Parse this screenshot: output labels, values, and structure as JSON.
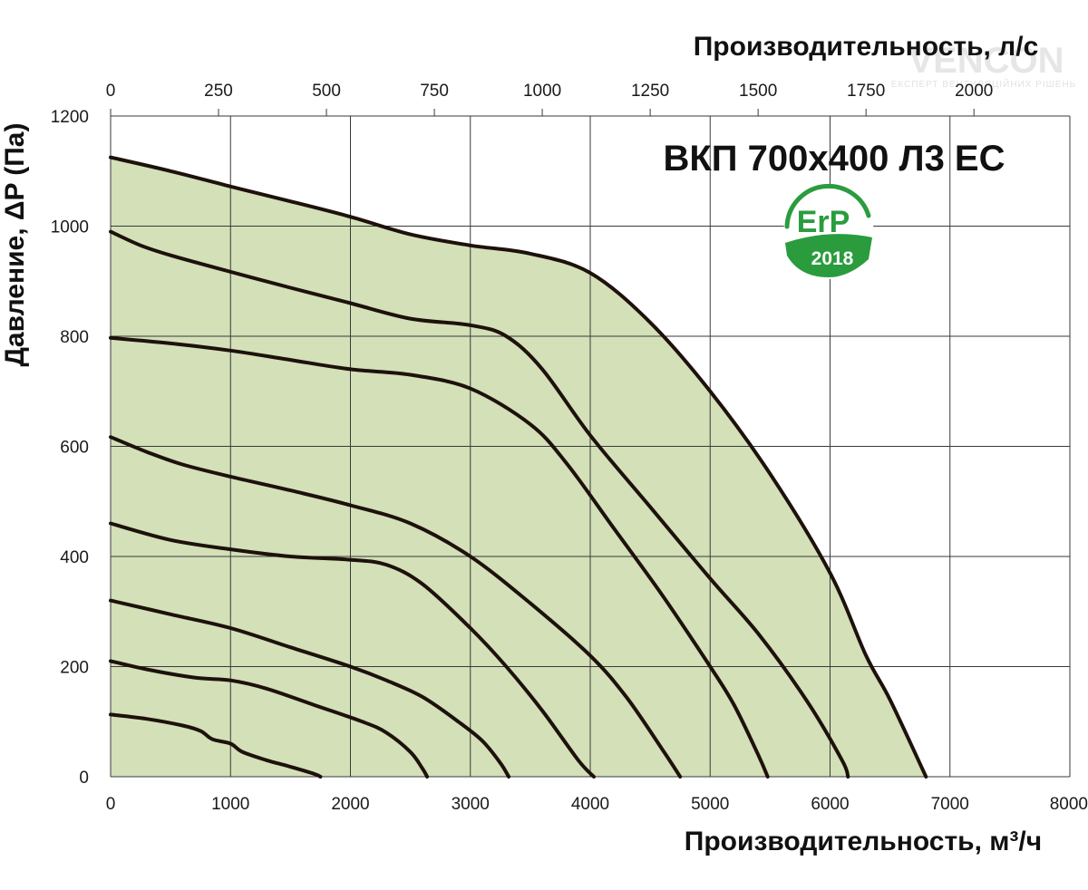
{
  "chart_data": {
    "type": "line",
    "title": "ВКП 700x400 Л3 ЕС",
    "xlabel": "Производительность, м³/ч",
    "x2label": "Производительность, л/с",
    "ylabel": "Давление, ΔP (Па)",
    "xlim": [
      0,
      8000
    ],
    "x2lim": [
      0,
      2222.2
    ],
    "ylim": [
      0,
      1200
    ],
    "x_ticks": [
      "0",
      "1000",
      "2000",
      "3000",
      "4000",
      "5000",
      "6000",
      "7000",
      "8000"
    ],
    "x2_ticks": [
      "0",
      "250",
      "500",
      "750",
      "1000",
      "1250",
      "1500",
      "1750",
      "2000"
    ],
    "y_ticks": [
      "0",
      "200",
      "400",
      "600",
      "800",
      "1000",
      "1200"
    ],
    "grid": true,
    "fill_color": "#d3e0b8",
    "curve_color": "#1e110c",
    "series": [
      {
        "x": [
          0,
          500,
          1000,
          1500,
          2000,
          2500,
          3000,
          3500,
          4000,
          4500,
          5000,
          5500,
          6000,
          6300,
          6500,
          6800
        ],
        "y": [
          1125,
          1100,
          1072,
          1045,
          1017,
          985,
          965,
          950,
          915,
          825,
          700,
          550,
          370,
          220,
          140,
          0
        ]
      },
      {
        "x": [
          0,
          250,
          500,
          1000,
          1500,
          2000,
          2500,
          3000,
          3300,
          3600,
          4000,
          4500,
          5000,
          5400,
          5800,
          6100,
          6150
        ],
        "y": [
          990,
          965,
          947,
          917,
          888,
          860,
          832,
          820,
          800,
          740,
          620,
          490,
          360,
          260,
          140,
          30,
          0
        ]
      },
      {
        "x": [
          0,
          500,
          1000,
          1500,
          2000,
          2500,
          3000,
          3500,
          3800,
          4200,
          4600,
          5000,
          5200,
          5400,
          5480
        ],
        "y": [
          797,
          787,
          774,
          757,
          740,
          730,
          705,
          640,
          570,
          450,
          330,
          200,
          130,
          40,
          0
        ]
      },
      {
        "x": [
          0,
          300,
          600,
          1000,
          1500,
          2000,
          2500,
          3000,
          3500,
          4000,
          4300,
          4600,
          4750
        ],
        "y": [
          617,
          590,
          567,
          545,
          520,
          493,
          460,
          400,
          315,
          220,
          145,
          50,
          0
        ]
      },
      {
        "x": [
          0,
          500,
          1000,
          1500,
          2000,
          2300,
          2600,
          3000,
          3300,
          3600,
          3900,
          4030
        ],
        "y": [
          460,
          430,
          413,
          400,
          394,
          385,
          350,
          270,
          200,
          120,
          30,
          0
        ]
      },
      {
        "x": [
          0,
          500,
          1000,
          1500,
          2000,
          2300,
          2600,
          2900,
          3100,
          3250,
          3320
        ],
        "y": [
          320,
          295,
          270,
          235,
          200,
          175,
          145,
          100,
          65,
          25,
          0
        ]
      },
      {
        "x": [
          0,
          300,
          700,
          1000,
          1300,
          1700,
          2100,
          2300,
          2500,
          2600,
          2640
        ],
        "y": [
          210,
          195,
          180,
          175,
          160,
          130,
          100,
          80,
          45,
          15,
          0
        ]
      },
      {
        "x": [
          0,
          300,
          600,
          750,
          850,
          1000,
          1100,
          1300,
          1500,
          1700,
          1750
        ],
        "y": [
          113,
          105,
          93,
          83,
          68,
          60,
          45,
          30,
          18,
          5,
          0
        ]
      }
    ]
  },
  "badge": {
    "main": "ErP",
    "year": "2018",
    "color": "#2a9c3e"
  },
  "watermark": {
    "brand": "VENCON",
    "tagline": "ЕКСПЕРТ ВЕНТИЛЯЦІЙНИХ РІШЕНЬ"
  }
}
